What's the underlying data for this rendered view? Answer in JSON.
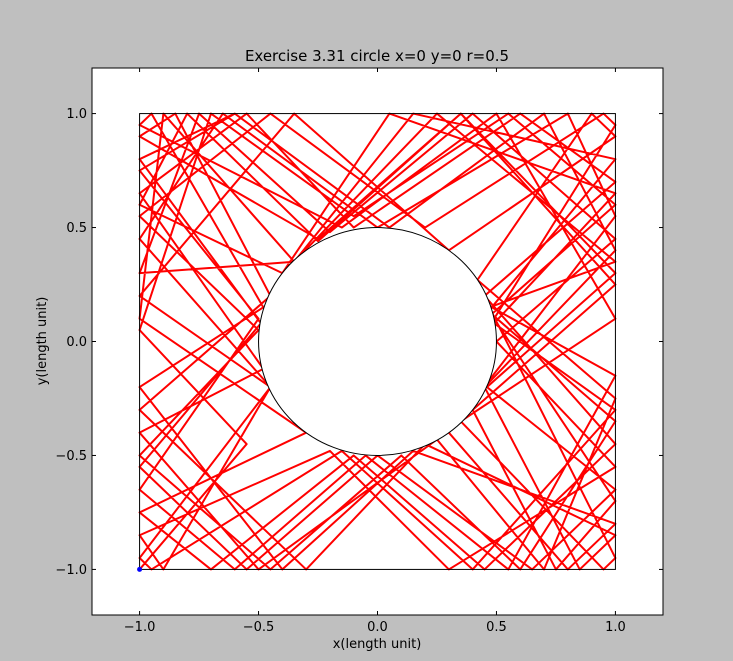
{
  "chart_data": {
    "type": "line",
    "title": "Exercise 3.31 circle x=0  y=0  r=0.5",
    "xlabel": "x(length unit)",
    "ylabel": "y(length unit)",
    "xlim": [
      -1.2,
      1.2
    ],
    "ylim": [
      -1.2,
      1.2
    ],
    "x_ticks": [
      -1.0,
      -0.5,
      0.0,
      0.5,
      1.0
    ],
    "y_ticks": [
      -1.0,
      -0.5,
      0.0,
      0.5,
      1.0
    ],
    "x_tick_labels": [
      "−1.0",
      "−0.5",
      "0.0",
      "0.5",
      "1.0"
    ],
    "y_tick_labels": [
      "−1.0",
      "−0.5",
      "0.0",
      "0.5",
      "1.0"
    ],
    "grid": false,
    "legend": "none",
    "shapes": {
      "box": {
        "xmin": -1.0,
        "xmax": 1.0,
        "ymin": -1.0,
        "ymax": 1.0,
        "color": "#000000"
      },
      "circle": {
        "cx": 0.0,
        "cy": 0.0,
        "r": 0.5,
        "color": "#000000"
      }
    },
    "start_point": {
      "x": -1.0,
      "y": -1.0,
      "color": "#0000ff"
    },
    "series": [
      {
        "color": "#ff0000",
        "points": [
          [
            -1.0,
            -1.0
          ],
          [
            -0.55,
            -0.45
          ],
          [
            -1.0,
            0.05
          ],
          [
            -0.7,
            1.0
          ],
          [
            -0.1,
            0.55
          ],
          [
            0.55,
            1.0
          ],
          [
            1.0,
            0.6
          ],
          [
            0.48,
            0.12
          ],
          [
            1.0,
            -0.35
          ],
          [
            0.6,
            -1.0
          ],
          [
            0.1,
            -0.5
          ],
          [
            -0.45,
            -1.0
          ],
          [
            -1.0,
            -0.5
          ],
          [
            -0.5,
            0.05
          ],
          [
            -1.0,
            0.55
          ],
          [
            -0.45,
            1.0
          ],
          [
            0.2,
            0.5
          ],
          [
            0.95,
            1.0
          ],
          [
            1.0,
            0.95
          ],
          [
            0.49,
            0.1
          ],
          [
            1.0,
            -0.7
          ],
          [
            0.75,
            -1.0
          ],
          [
            0.4,
            -0.3
          ],
          [
            1.0,
            0.25
          ],
          [
            0.35,
            1.0
          ],
          [
            -0.25,
            0.45
          ],
          [
            -1.0,
            0.9
          ],
          [
            -0.85,
            1.0
          ],
          [
            -0.45,
            0.2
          ],
          [
            -1.0,
            -0.3
          ],
          [
            -0.3,
            -1.0
          ],
          [
            0.2,
            -0.45
          ],
          [
            1.0,
            -0.85
          ],
          [
            0.85,
            -1.0
          ],
          [
            0.45,
            -0.2
          ],
          [
            1.0,
            0.4
          ],
          [
            0.7,
            1.0
          ],
          [
            0.05,
            0.5
          ],
          [
            -0.6,
            1.0
          ],
          [
            -1.0,
            0.75
          ],
          [
            -0.5,
            0.1
          ],
          [
            -1.0,
            -0.65
          ],
          [
            -0.6,
            -1.0
          ],
          [
            -0.05,
            -0.5
          ],
          [
            0.55,
            -1.0
          ],
          [
            1.0,
            -0.15
          ],
          [
            0.48,
            0.15
          ],
          [
            1.0,
            0.8
          ],
          [
            0.15,
            1.0
          ],
          [
            -0.35,
            0.35
          ],
          [
            -1.0,
            0.3
          ],
          [
            -0.75,
            1.0
          ],
          [
            -0.2,
            0.48
          ],
          [
            0.4,
            1.0
          ],
          [
            1.0,
            0.45
          ],
          [
            0.5,
            0.0
          ],
          [
            1.0,
            -0.55
          ],
          [
            0.3,
            -1.0
          ],
          [
            -0.2,
            -0.48
          ],
          [
            -1.0,
            -0.85
          ],
          [
            -0.9,
            -1.0
          ],
          [
            -0.45,
            -0.2
          ],
          [
            -1.0,
            0.2
          ],
          [
            -0.35,
            1.0
          ],
          [
            0.3,
            0.4
          ],
          [
            1.0,
            0.9
          ],
          [
            0.9,
            1.0
          ],
          [
            0.42,
            0.27
          ],
          [
            1.0,
            -0.25
          ],
          [
            0.7,
            -1.0
          ],
          [
            0.25,
            -0.43
          ],
          [
            -0.5,
            -1.0
          ],
          [
            -1.0,
            -0.4
          ],
          [
            -0.48,
            -0.12
          ],
          [
            -1.0,
            0.65
          ],
          [
            -0.55,
            1.0
          ],
          [
            -0.1,
            0.5
          ],
          [
            0.6,
            1.0
          ],
          [
            1.0,
            0.7
          ],
          [
            0.45,
            0.2
          ],
          [
            1.0,
            -0.45
          ],
          [
            0.45,
            -1.0
          ],
          [
            -0.1,
            -0.5
          ],
          [
            -0.7,
            -1.0
          ],
          [
            -1.0,
            -0.75
          ],
          [
            -0.3,
            -0.4
          ],
          [
            -1.0,
            0.1
          ],
          [
            -0.9,
            1.0
          ],
          [
            -0.35,
            0.35
          ],
          [
            0.25,
            1.0
          ],
          [
            1.0,
            0.35
          ],
          [
            0.47,
            0.15
          ],
          [
            1.0,
            -0.95
          ],
          [
            0.95,
            -1.0
          ],
          [
            0.35,
            -0.35
          ],
          [
            1.0,
            0.1
          ],
          [
            0.5,
            1.0
          ],
          [
            -0.15,
            0.5
          ],
          [
            -1.0,
            0.95
          ],
          [
            -0.95,
            1.0
          ],
          [
            -0.48,
            0.15
          ],
          [
            -1.0,
            -0.2
          ],
          [
            -0.4,
            -1.0
          ],
          [
            0.15,
            -0.48
          ],
          [
            1.0,
            -0.8
          ],
          [
            0.8,
            -1.0
          ],
          [
            0.3,
            -0.4
          ],
          [
            1.0,
            0.55
          ],
          [
            0.8,
            1.0
          ],
          [
            0.0,
            0.5
          ],
          [
            -0.65,
            1.0
          ],
          [
            -1.0,
            0.45
          ],
          [
            -0.45,
            -0.2
          ],
          [
            -1.0,
            -0.95
          ],
          [
            -0.95,
            -1.0
          ],
          [
            -0.15,
            -0.48
          ],
          [
            0.4,
            -1.0
          ],
          [
            1.0,
            -0.3
          ],
          [
            0.49,
            0.08
          ],
          [
            1.0,
            0.65
          ],
          [
            0.05,
            1.0
          ],
          [
            -0.4,
            0.3
          ],
          [
            -1.0,
            0.6
          ],
          [
            -0.8,
            1.0
          ],
          [
            -0.25,
            0.44
          ],
          [
            0.35,
            1.0
          ],
          [
            1.0,
            0.3
          ],
          [
            0.46,
            -0.2
          ],
          [
            1.0,
            -0.65
          ],
          [
            0.65,
            -1.0
          ],
          [
            0.0,
            -0.5
          ],
          [
            -0.55,
            -1.0
          ],
          [
            -1.0,
            -0.55
          ],
          [
            -0.49,
            0.08
          ],
          [
            -1.0,
            0.8
          ],
          [
            -0.6,
            1.0
          ]
        ]
      }
    ]
  }
}
